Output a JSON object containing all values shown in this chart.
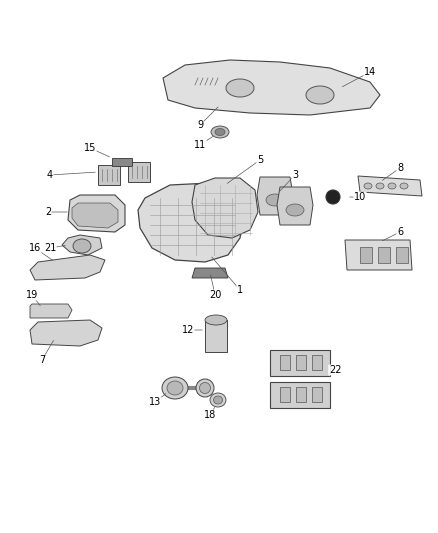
{
  "bg_color": "#ffffff",
  "fig_width": 4.38,
  "fig_height": 5.33,
  "dpi": 100,
  "label_fontsize": 7.0,
  "label_color": "#000000",
  "part_edge": "#444444",
  "part_face": "#e8e8e8",
  "line_color": "#555555"
}
